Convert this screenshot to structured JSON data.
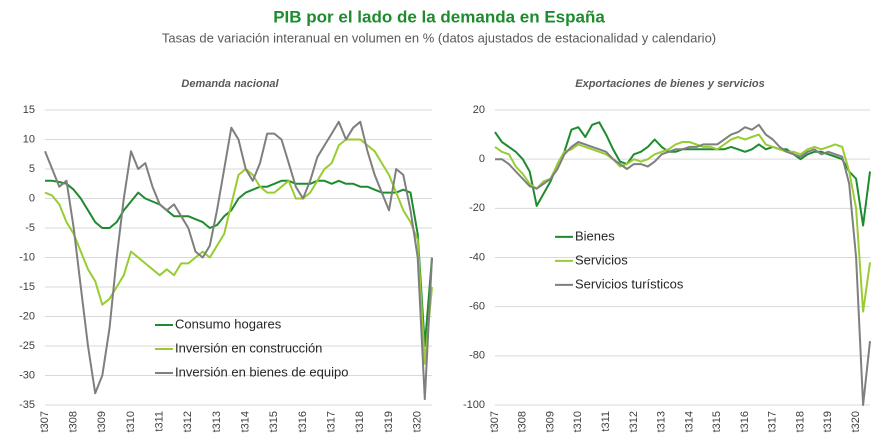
{
  "header": {
    "title": "PIB por el lado de la demanda en España",
    "subtitle": "Tasas de variación interanual en volumen en % (datos ajustados de estacionalidad y calendario)"
  },
  "chart_data": [
    {
      "type": "line",
      "title": "Demanda nacional",
      "legend": "lower center",
      "grid": true,
      "categories": [
        "t307",
        null,
        null,
        null,
        "t308",
        null,
        null,
        null,
        "t309",
        null,
        null,
        null,
        "t310",
        null,
        null,
        null,
        "t311",
        null,
        null,
        null,
        "t312",
        null,
        null,
        null,
        "t313",
        null,
        null,
        null,
        "t314",
        null,
        null,
        null,
        "t315",
        null,
        null,
        null,
        "t316",
        null,
        null,
        null,
        "t317",
        null,
        null,
        null,
        "t318",
        null,
        null,
        null,
        "t319",
        null,
        null,
        null,
        "t320",
        null,
        null
      ],
      "ylim": [
        -35,
        15
      ],
      "yticks": [
        -35,
        -30,
        -25,
        -20,
        -15,
        -10,
        -5,
        0,
        5,
        10,
        15
      ],
      "series": [
        {
          "name": "Consumo hogares",
          "color": "#1e8c2e",
          "values": [
            3,
            3,
            2.8,
            2.5,
            1.5,
            0,
            -2,
            -4,
            -5,
            -5,
            -4,
            -2,
            -0.5,
            1,
            0,
            -0.5,
            -1,
            -2,
            -3,
            -3,
            -3,
            -3.5,
            -4,
            -5,
            -4.5,
            -3,
            -2,
            0,
            1,
            1.5,
            2,
            2,
            2.5,
            3,
            3,
            2.5,
            2.5,
            2.5,
            3,
            3,
            2.5,
            3,
            2.5,
            2.5,
            2,
            2,
            1.5,
            1,
            1,
            1,
            1.5,
            1,
            -6,
            -25,
            -10
          ]
        },
        {
          "name": "Inversión en construcción",
          "color": "#99cc33",
          "values": [
            1,
            0.5,
            -1,
            -4,
            -6,
            -9,
            -12,
            -14,
            -18,
            -17,
            -15,
            -13,
            -9,
            -10,
            -11,
            -12,
            -13,
            -12,
            -13,
            -11,
            -11,
            -10,
            -9,
            -10,
            -8,
            -6,
            -1,
            4,
            5,
            4,
            2,
            1,
            1,
            2,
            3,
            0,
            0,
            1,
            3,
            5,
            6,
            9,
            10,
            10,
            10,
            9,
            8,
            6,
            4,
            1,
            -2,
            -4,
            -7,
            -28,
            -15
          ]
        },
        {
          "name": "Inversión en bienes de equipo",
          "color": "#7f7f7f",
          "values": [
            8,
            5,
            2,
            3,
            -5,
            -15,
            -25,
            -33,
            -30,
            -22,
            -10,
            0,
            8,
            5,
            6,
            2,
            -1,
            -2,
            -1,
            -3,
            -5,
            -9,
            -10,
            -8,
            -2,
            5,
            12,
            10,
            5,
            3,
            6,
            11,
            11,
            10,
            6,
            2,
            0,
            3,
            7,
            9,
            11,
            13,
            10,
            12,
            13,
            8,
            4,
            1,
            -2,
            5,
            4,
            -2,
            -10,
            -34,
            -10
          ]
        }
      ]
    },
    {
      "type": "line",
      "title": "Exportaciones de bienes y servicios",
      "legend": "center left",
      "grid": true,
      "categories": [
        "t307",
        null,
        null,
        null,
        "t308",
        null,
        null,
        null,
        "t309",
        null,
        null,
        null,
        "t310",
        null,
        null,
        null,
        "t311",
        null,
        null,
        null,
        "t312",
        null,
        null,
        null,
        "t313",
        null,
        null,
        null,
        "t314",
        null,
        null,
        null,
        "t315",
        null,
        null,
        null,
        "t316",
        null,
        null,
        null,
        "t317",
        null,
        null,
        null,
        "t318",
        null,
        null,
        null,
        "t319",
        null,
        null,
        null,
        "t320",
        null,
        null
      ],
      "ylim": [
        -100,
        20
      ],
      "yticks": [
        -100,
        -80,
        -60,
        -40,
        -20,
        0,
        20
      ],
      "series": [
        {
          "name": "Bienes",
          "color": "#1e8c2e",
          "values": [
            11,
            7,
            5,
            3,
            0,
            -5,
            -19,
            -14,
            -9,
            -2,
            3,
            12,
            13,
            9,
            14,
            15,
            10,
            4,
            -1,
            -2,
            2,
            3,
            5,
            8,
            5,
            3,
            3,
            4,
            4,
            4,
            4,
            4,
            4,
            4,
            5,
            4,
            3,
            4,
            6,
            4,
            5,
            4,
            4,
            2,
            0,
            2,
            3,
            3,
            2,
            1,
            0,
            -5,
            -8,
            -27,
            -5
          ]
        },
        {
          "name": "Servicios",
          "color": "#99cc33",
          "values": [
            5,
            3,
            2,
            -3,
            -6,
            -10,
            -12,
            -9,
            -8,
            -2,
            3,
            4,
            6,
            5,
            4,
            3,
            2,
            0,
            -3,
            -2,
            0,
            -1,
            0,
            2,
            3,
            4,
            6,
            7,
            7,
            6,
            5,
            5,
            4,
            6,
            8,
            9,
            8,
            9,
            10,
            6,
            5,
            4,
            3,
            3,
            2,
            4,
            5,
            4,
            5,
            6,
            5,
            -5,
            -20,
            -62,
            -42
          ]
        },
        {
          "name": "Servicios turísticos",
          "color": "#7f7f7f",
          "values": [
            0,
            0,
            -2,
            -5,
            -8,
            -11,
            -12,
            -10,
            -8,
            -4,
            2,
            5,
            7,
            6,
            5,
            4,
            3,
            0,
            -2,
            -4,
            -2,
            -2,
            -3,
            -1,
            2,
            3,
            4,
            4,
            5,
            5,
            6,
            6,
            6,
            8,
            10,
            11,
            13,
            12,
            14,
            10,
            8,
            5,
            3,
            2,
            1,
            3,
            4,
            2,
            3,
            2,
            1,
            -10,
            -40,
            -100,
            -74
          ]
        }
      ]
    }
  ]
}
